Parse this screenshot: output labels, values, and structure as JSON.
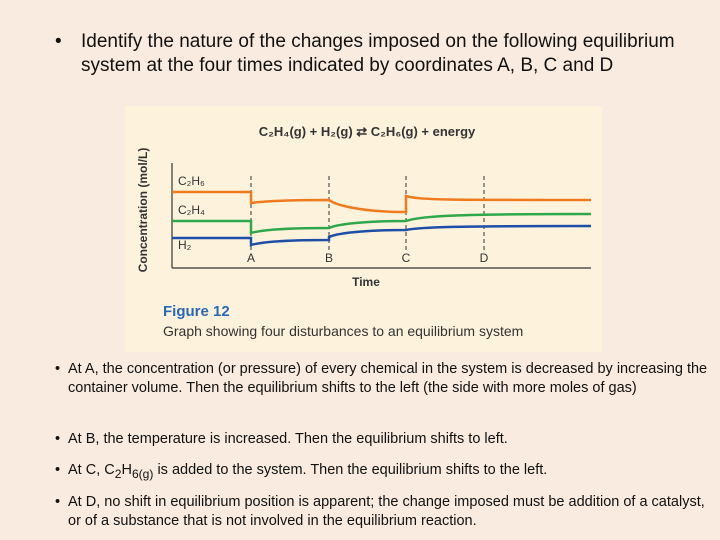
{
  "question": "Identify the nature of the changes imposed on the following equilibrium system at the four times indicated by coordinates A, B, C and D",
  "figure": {
    "equation": "C₂H₄(g) + H₂(g) ⇄ C₂H₆(g) + energy",
    "y_axis_label": "Concentration (mol/L)",
    "x_axis_label": "Time",
    "series_labels": [
      "C₂H₆",
      "C₂H₄",
      "H₂"
    ],
    "time_points": [
      "A",
      "B",
      "C",
      "D"
    ],
    "figure_number": "Figure 12",
    "caption": "Graph showing four disturbances to an equilibrium system"
  },
  "answers": [
    "At A, the concentration (or pressure) of every chemical in the system is decreased by increasing the container volume.  Then the equilibrium shifts to the left (the side with more moles of gas)",
    "At B, the temperature is increased.  Then the equilibrium shifts to left.",
    [
      "At C, C",
      "2",
      "H",
      "6(g)",
      " is added to the system.  Then the equilibrium shifts to the left."
    ],
    "At D, no shift in equilibrium position is apparent; the change imposed must be addition of a catalyst, or of a substance that is not involved in the equilibrium reaction."
  ]
}
